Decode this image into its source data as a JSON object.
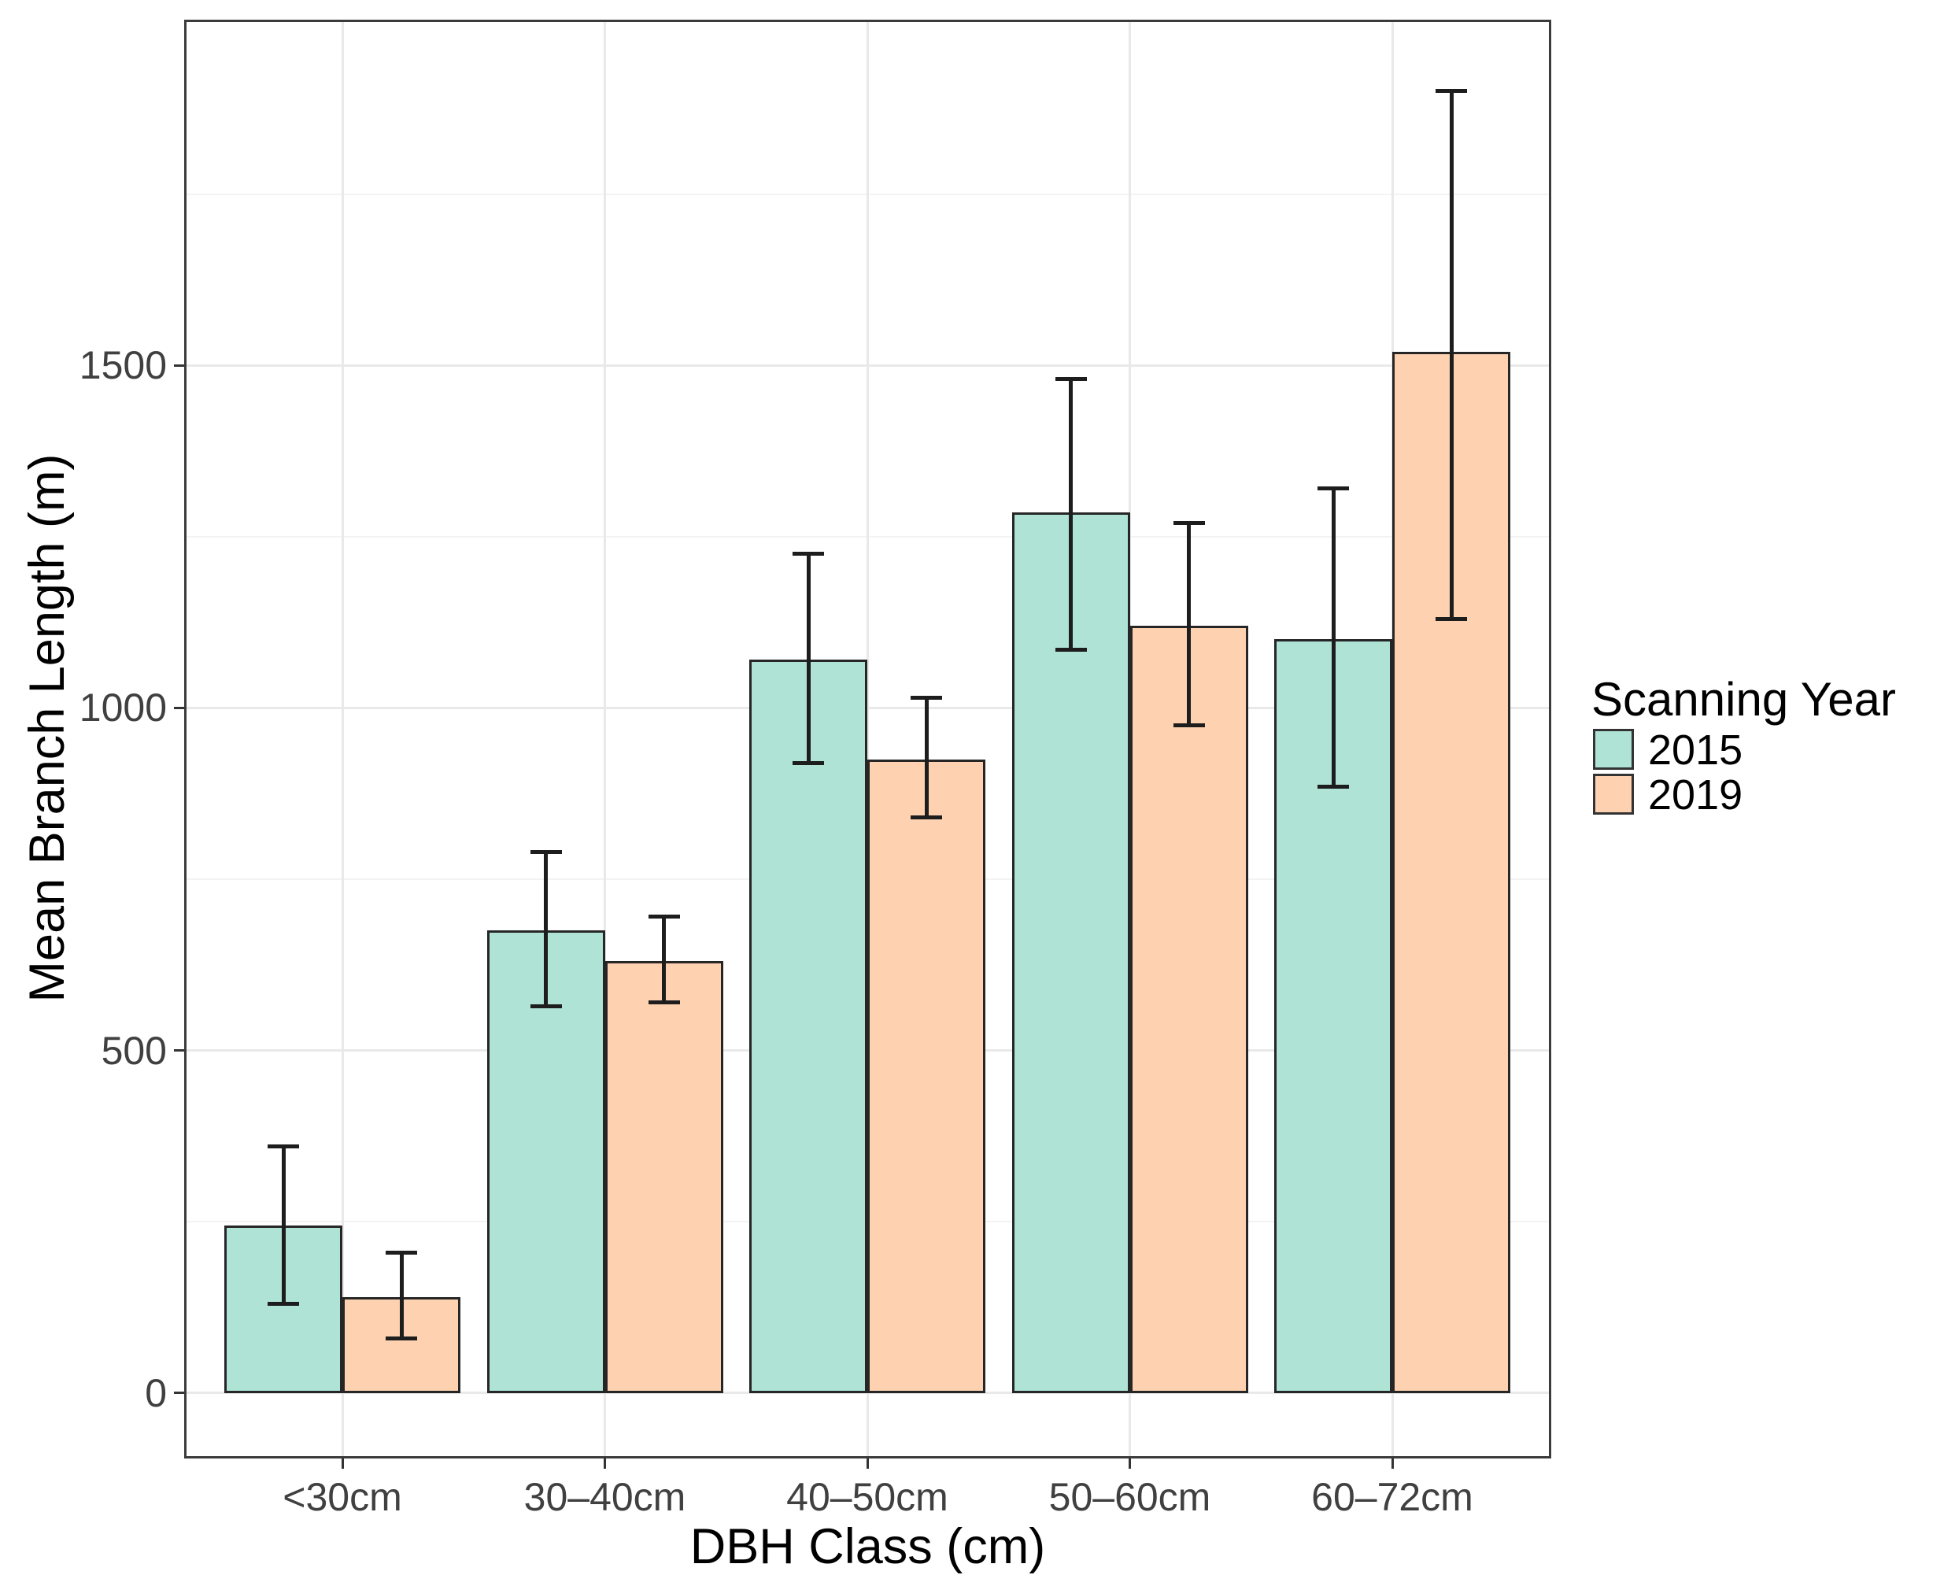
{
  "chart_data": {
    "type": "bar",
    "title": "",
    "xlabel": "DBH Class (cm)",
    "ylabel": "Mean Branch Length (m)",
    "categories": [
      "<30cm",
      "30–40cm",
      "40–50cm",
      "50–60cm",
      "60–72cm"
    ],
    "series": [
      {
        "name": "2015",
        "color": "#aee3d6",
        "values": [
          245,
          675,
          1070,
          1285,
          1100
        ],
        "error_low": [
          130,
          565,
          920,
          1085,
          885
        ],
        "error_high": [
          360,
          790,
          1225,
          1480,
          1320
        ]
      },
      {
        "name": "2019",
        "color": "#fed2b0",
        "values": [
          140,
          630,
          925,
          1120,
          1520
        ],
        "error_low": [
          80,
          570,
          840,
          975,
          1130
        ],
        "error_high": [
          205,
          695,
          1015,
          1270,
          1900
        ]
      }
    ],
    "y_axis": {
      "ticks": [
        0,
        500,
        1000,
        1500
      ],
      "minor_ticks": [
        250,
        750,
        1250,
        1750
      ],
      "range": [
        -92,
        2001
      ]
    },
    "legend": {
      "title": "Scanning Year",
      "position": "right"
    },
    "grid": true,
    "colors": {
      "bar_border": "#262626",
      "error_bar": "#1d1d1d",
      "panel_border": "#3b3b3b",
      "grid_major": "#e9e9e9",
      "grid_minor": "#f3f3f3",
      "tick_text": "#404040",
      "title_text": "#000000"
    }
  }
}
